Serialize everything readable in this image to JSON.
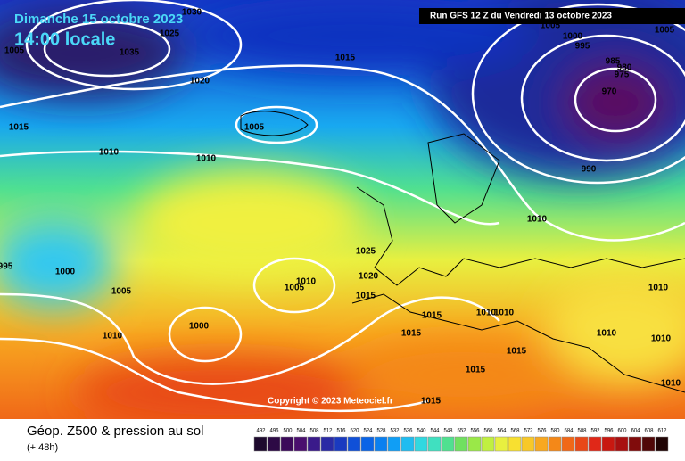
{
  "header": {
    "date": "Dimanche 15 octobre 2023",
    "time": "14:00 locale",
    "run": "Run GFS 12 Z du Vendredi 13 octobre 2023"
  },
  "isobar_labels": [
    "1030",
    "1025",
    "1005",
    "1035",
    "1015",
    "1020",
    "1015",
    "1005",
    "1010",
    "1010",
    "1005",
    "1005",
    "1000",
    "995",
    "985",
    "980",
    "975",
    "970",
    "990",
    "1010",
    "1025",
    "1020",
    "1000",
    "995",
    "1005",
    "1005",
    "1010",
    "1015",
    "1015",
    "1010",
    "1010",
    "1010",
    "1000",
    "1010",
    "1015",
    "1010",
    "1010",
    "1015",
    "1015",
    "1010",
    "1015"
  ],
  "copyright": "Copyright © 2023 Meteociel.fr",
  "footer": {
    "title": "Géop. Z500 & pression au sol",
    "lead": "(+ 48h)"
  },
  "legend": {
    "values": [
      492,
      496,
      500,
      504,
      508,
      512,
      516,
      520,
      524,
      528,
      532,
      536,
      540,
      544,
      548,
      552,
      556,
      560,
      564,
      568,
      572,
      576,
      580,
      584,
      588,
      592,
      596,
      600,
      604,
      608,
      612
    ],
    "colors": [
      "#1e0a2e",
      "#2d0a45",
      "#3c0a5a",
      "#4a0f6e",
      "#3a1a8a",
      "#2a2aa5",
      "#1a3ac0",
      "#1050d8",
      "#0a64e6",
      "#0a80f0",
      "#109ef5",
      "#20bcf0",
      "#30d8e0",
      "#40e0c0",
      "#50e090",
      "#70e060",
      "#9ae848",
      "#c0f040",
      "#e8f040",
      "#f8e030",
      "#f8c828",
      "#f8a820",
      "#f48818",
      "#f06818",
      "#e84818",
      "#e02818",
      "#c81810",
      "#a81010",
      "#800c0c",
      "#500808",
      "#200404"
    ]
  }
}
